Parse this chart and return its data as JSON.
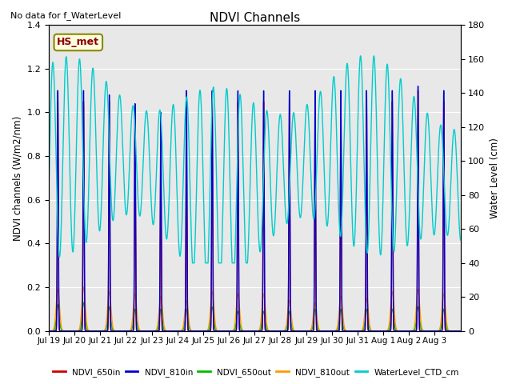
{
  "title": "NDVI Channels",
  "top_left_text": "No data for f_WaterLevel",
  "annotation_text": "HS_met",
  "ylabel_left": "NDVI channels (W/m2/nm)",
  "ylabel_right": "Water Level (cm)",
  "ylim_left": [
    0,
    1.4
  ],
  "ylim_right": [
    0,
    180
  ],
  "colors": {
    "NDVI_650in": "#cc0000",
    "NDVI_810in": "#0000cc",
    "NDVI_650out": "#00bb00",
    "NDVI_810out": "#ff9900",
    "WaterLevel_CTD_cm": "#00cccc"
  },
  "x_tick_labels": [
    "Jul 19",
    "Jul 20",
    "Jul 21",
    "Jul 22",
    "Jul 23",
    "Jul 24",
    "Jul 25",
    "Jul 26",
    "Jul 27",
    "Jul 28",
    "Jul 29",
    "Jul 30",
    "Jul 31",
    "Aug 1",
    "Aug 2",
    "Aug 3"
  ],
  "n_days": 16,
  "figsize": [
    6.4,
    4.8
  ],
  "dpi": 100
}
